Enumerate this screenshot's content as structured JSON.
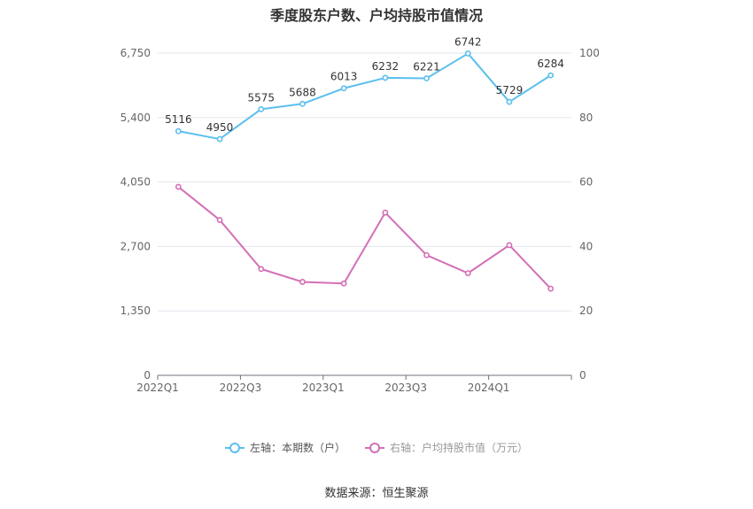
{
  "source": "数据来源：恒生聚源",
  "chart_data": {
    "type": "line",
    "title": "季度股东户数、户均持股市值情况",
    "x": [
      "2022Q1",
      "2022Q2",
      "2022Q3",
      "2022Q4",
      "2023Q1",
      "2023Q2",
      "2023Q3",
      "2023Q4",
      "2024Q1",
      "2024Q2"
    ],
    "x_tick_labels": [
      "2022Q1",
      "2022Q3",
      "2023Q1",
      "2023Q3",
      "2024Q1"
    ],
    "left_axis": {
      "ylim": [
        0,
        6750
      ],
      "ticks": [
        0,
        1350,
        2700,
        4050,
        5400,
        6750
      ],
      "tick_labels": [
        "0",
        "1,350",
        "2,700",
        "4,050",
        "5,400",
        "6,750"
      ]
    },
    "right_axis": {
      "ylim": [
        0,
        100
      ],
      "ticks": [
        0,
        20,
        40,
        60,
        80,
        100
      ],
      "tick_labels": [
        "0",
        "20",
        "40",
        "60",
        "80",
        "100"
      ]
    },
    "grid": true,
    "legend_position": "bottom",
    "series": [
      {
        "name": "左轴：本期数（户）",
        "axis": "left",
        "color": "#5bbfee",
        "values": [
          5116,
          4950,
          5575,
          5688,
          6013,
          6232,
          6221,
          6742,
          5729,
          6284
        ],
        "data_labels": [
          "5116",
          "4950",
          "5575",
          "5688",
          "6013",
          "6232",
          "6221",
          "6742",
          "5729",
          "6284"
        ]
      },
      {
        "name": "右轴：户均持股市值（万元）",
        "axis": "right",
        "color": "#d36fb6",
        "values": [
          58.5,
          48.2,
          33.0,
          29.0,
          28.5,
          50.5,
          37.3,
          31.7,
          40.4,
          26.9
        ]
      }
    ]
  }
}
